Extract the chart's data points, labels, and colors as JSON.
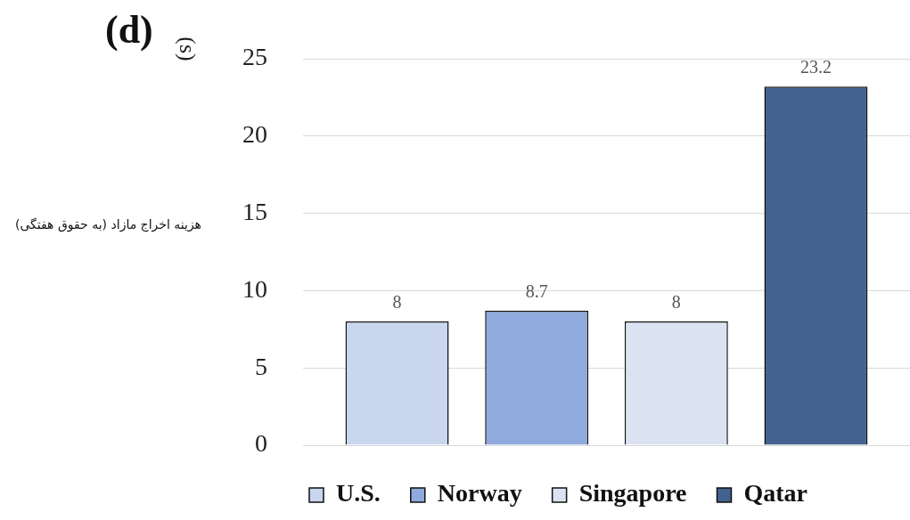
{
  "chart_data": {
    "type": "bar",
    "title": "(d)",
    "ylabel": "هزینه اخراج مازاد (به حقوق هفتگی)",
    "annotations": [
      "(s)"
    ],
    "categories": [
      null
    ],
    "series": [
      {
        "name": "U.S.",
        "color": "#c9d6ee",
        "values": [
          8
        ]
      },
      {
        "name": "Norway",
        "color": "#8faadc",
        "values": [
          8.7
        ]
      },
      {
        "name": "Singapore",
        "color": "#dbe3f2",
        "values": [
          8
        ]
      },
      {
        "name": "Qatar",
        "color": "#44628f",
        "values": [
          23.2
        ]
      }
    ],
    "ylim": [
      0,
      25
    ],
    "yticks": [
      0,
      5,
      10,
      15,
      20,
      25
    ],
    "grid": "y",
    "legend": "bottom",
    "data_labels": true
  }
}
